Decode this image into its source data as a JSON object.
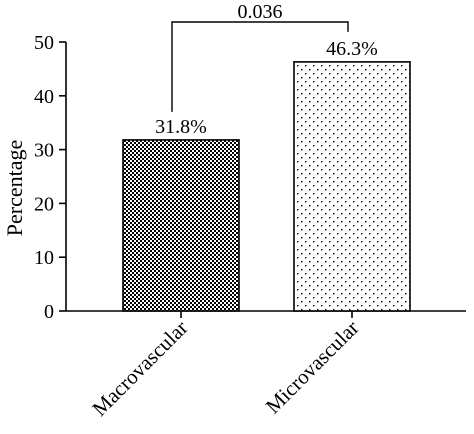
{
  "chart_data": {
    "type": "bar",
    "title": "",
    "xlabel": "",
    "ylabel": "Percentage",
    "categories": [
      "Macrovascular",
      "Microvascular"
    ],
    "values": [
      31.8,
      46.3
    ],
    "data_labels": [
      "31.8%",
      "46.3%"
    ],
    "bar_patterns": [
      "checkerboard",
      "dots"
    ],
    "ylim": [
      0,
      50
    ],
    "yticks": [
      0,
      10,
      20,
      30,
      40,
      50
    ],
    "grid": false,
    "legend": "none",
    "annotation": {
      "type": "significance-bracket",
      "between": [
        "Macrovascular",
        "Microvascular"
      ],
      "label": "0.036"
    }
  },
  "colors": {
    "axis": "#000000",
    "bar_fill": "#ffffff",
    "pattern_ink": "#000000"
  }
}
